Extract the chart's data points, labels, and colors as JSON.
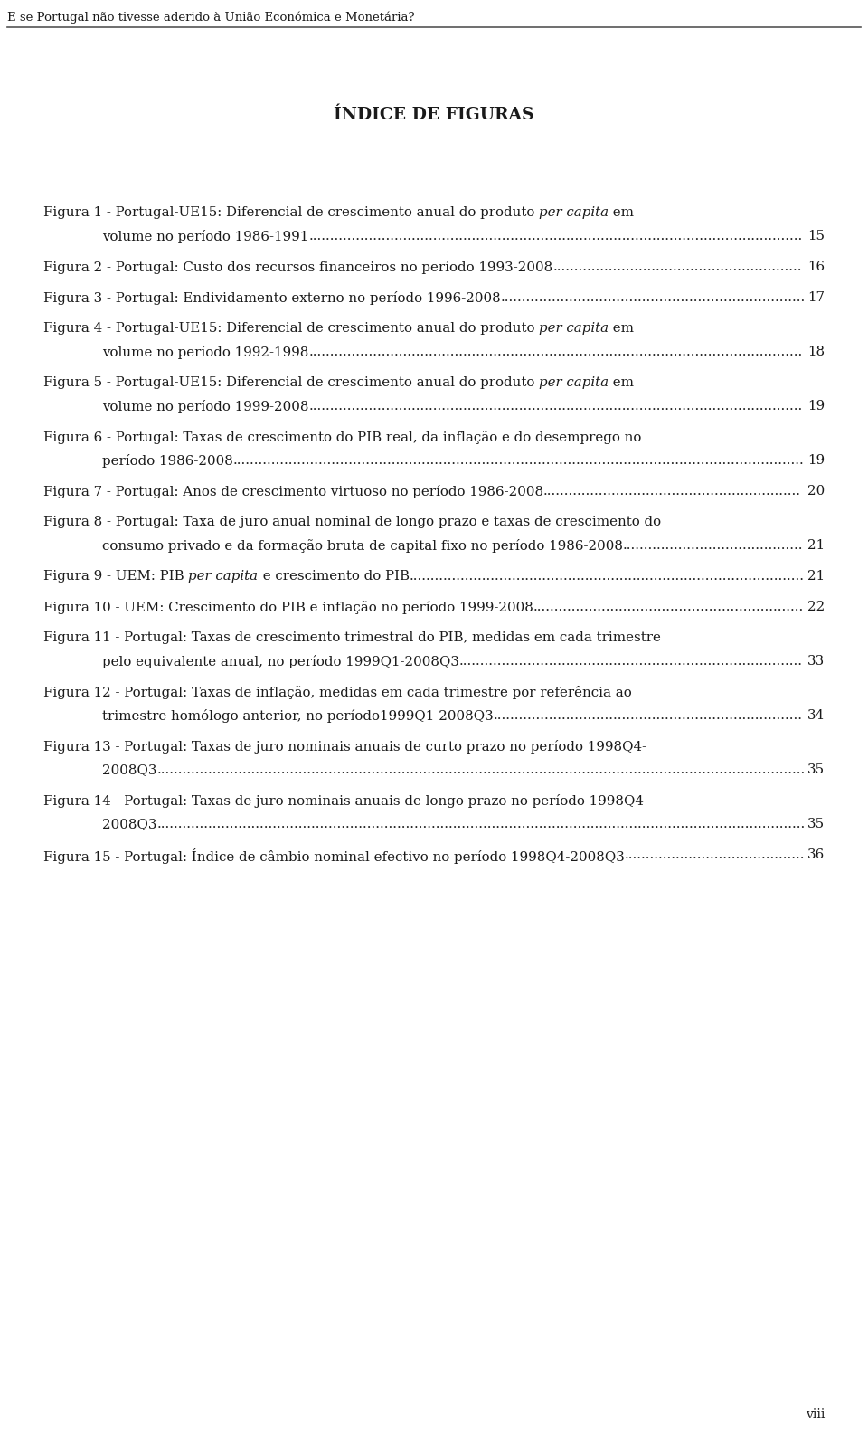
{
  "header_text": "E se Portugal não tivesse aderido à União Económica e Monetária?",
  "title": "ÍNDICE DE FIGURAS",
  "page_label": "viii",
  "background_color": "#ffffff",
  "text_color": "#1a1a1a",
  "header_fontsize": 9.5,
  "title_fontsize": 13.5,
  "entry_fontsize": 10.8,
  "entries": [
    {
      "line1": [
        [
          "Figura 1 - Portugal-UE15: Diferencial de crescimento anual do produto ",
          "normal"
        ],
        [
          "per capita",
          "italic"
        ],
        [
          " em",
          "normal"
        ]
      ],
      "line2": "volume no período 1986-1991",
      "page": "15"
    },
    {
      "line1": [
        [
          "Figura 2 - Portugal: Custo dos recursos financeiros no período 1993-2008",
          "normal"
        ]
      ],
      "line2": null,
      "page": "16"
    },
    {
      "line1": [
        [
          "Figura 3 - Portugal: Endividamento externo no período 1996-2008",
          "normal"
        ]
      ],
      "line2": null,
      "page": "17"
    },
    {
      "line1": [
        [
          "Figura 4 - Portugal-UE15: Diferencial de crescimento anual do produto ",
          "normal"
        ],
        [
          "per capita",
          "italic"
        ],
        [
          " em",
          "normal"
        ]
      ],
      "line2": "volume no período 1992-1998",
      "page": "18"
    },
    {
      "line1": [
        [
          "Figura 5 - Portugal-UE15: Diferencial de crescimento anual do produto ",
          "normal"
        ],
        [
          "per capita",
          "italic"
        ],
        [
          " em",
          "normal"
        ]
      ],
      "line2": "volume no período 1999-2008",
      "page": "19"
    },
    {
      "line1": [
        [
          "Figura 6 - Portugal: Taxas de crescimento do PIB real, da inflação e do desemprego no",
          "normal"
        ]
      ],
      "line2": "período 1986-2008",
      "page": "19"
    },
    {
      "line1": [
        [
          "Figura 7 - Portugal: Anos de crescimento virtuoso no período 1986-2008",
          "normal"
        ]
      ],
      "line2": null,
      "page": "20"
    },
    {
      "line1": [
        [
          "Figura 8 - Portugal: Taxa de juro anual nominal de longo prazo e taxas de crescimento do",
          "normal"
        ]
      ],
      "line2": "consumo privado e da formação bruta de capital fixo no período 1986-2008",
      "page": "21"
    },
    {
      "line1": [
        [
          "Figura 9 - UEM: PIB ",
          "normal"
        ],
        [
          "per capita",
          "italic"
        ],
        [
          " e crescimento do PIB",
          "normal"
        ]
      ],
      "line2": null,
      "page": "21"
    },
    {
      "line1": [
        [
          "Figura 10 - UEM: Crescimento do PIB e inflação no período 1999-2008",
          "normal"
        ]
      ],
      "line2": null,
      "page": "22"
    },
    {
      "line1": [
        [
          "Figura 11 - Portugal: Taxas de crescimento trimestral do PIB, medidas em cada trimestre",
          "normal"
        ]
      ],
      "line2": "pelo equivalente anual, no período 1999Q1-2008Q3",
      "page": "33"
    },
    {
      "line1": [
        [
          "Figura 12 - Portugal: Taxas de inflação, medidas em cada trimestre por referência ao",
          "normal"
        ]
      ],
      "line2": "trimestre homólogo anterior, no período1999Q1-2008Q3",
      "page": "34"
    },
    {
      "line1": [
        [
          "Figura 13 - Portugal: Taxas de juro nominais anuais de curto prazo no período 1998Q4-",
          "normal"
        ]
      ],
      "line2": "2008Q3",
      "page": "35"
    },
    {
      "line1": [
        [
          "Figura 14 - Portugal: Taxas de juro nominais anuais de longo prazo no período 1998Q4-",
          "normal"
        ]
      ],
      "line2": "2008Q3",
      "page": "35"
    },
    {
      "line1": [
        [
          "Figura 15 - Portugal: Índice de câmbio nominal efectivo no período 1998Q4-2008Q3",
          "normal"
        ]
      ],
      "line2": null,
      "page": "36"
    }
  ]
}
